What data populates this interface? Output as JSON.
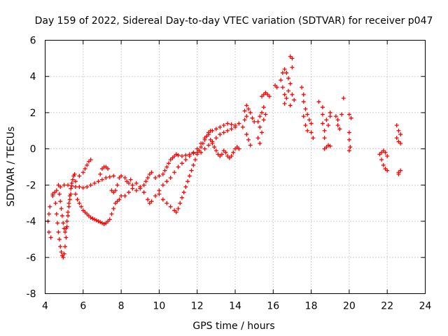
{
  "chart_data": {
    "type": "scatter",
    "title": "Day 159 of 2022, Sidereal Day-to-day VTEC variation (SDTVAR) for receiver p047",
    "xlabel": "GPS time / hours",
    "ylabel": "SDTVAR / TECUs",
    "xlim": [
      4,
      24
    ],
    "ylim": [
      -8,
      6
    ],
    "xticks": [
      4,
      6,
      8,
      10,
      12,
      14,
      16,
      18,
      20,
      22,
      24
    ],
    "yticks": [
      -8,
      -6,
      -4,
      -2,
      0,
      2,
      4,
      6
    ],
    "grid": true,
    "marker": "+",
    "colors": {
      "series": "#ff0000",
      "grid": "#a0a0a0",
      "axis": "#000000"
    },
    "series": [
      {
        "name": "SDTVAR",
        "points": [
          [
            4.15,
            -4.0
          ],
          [
            4.2,
            -3.6
          ],
          [
            4.2,
            -4.6
          ],
          [
            4.25,
            -3.2
          ],
          [
            4.3,
            -4.9
          ],
          [
            4.4,
            -2.6
          ],
          [
            4.5,
            -2.4
          ],
          [
            4.55,
            -3.0
          ],
          [
            4.6,
            -3.6
          ],
          [
            4.65,
            -4.1
          ],
          [
            4.7,
            -4.6
          ],
          [
            4.75,
            -5.0
          ],
          [
            4.8,
            -5.4
          ],
          [
            4.85,
            -5.7
          ],
          [
            4.9,
            -5.9
          ],
          [
            4.95,
            -6.0
          ],
          [
            5.0,
            -5.8
          ],
          [
            5.05,
            -5.4
          ],
          [
            5.1,
            -4.9
          ],
          [
            5.15,
            -4.3
          ],
          [
            5.2,
            -3.7
          ],
          [
            5.25,
            -3.2
          ],
          [
            5.3,
            -2.8
          ],
          [
            5.35,
            -2.5
          ],
          [
            4.7,
            -2.0
          ],
          [
            4.75,
            -2.5
          ],
          [
            4.8,
            -2.9
          ],
          [
            4.85,
            -3.3
          ],
          [
            4.9,
            -3.7
          ],
          [
            4.95,
            -4.1
          ],
          [
            5.0,
            -4.4
          ],
          [
            5.05,
            -4.6
          ],
          [
            5.1,
            -4.4
          ],
          [
            5.15,
            -4.0
          ],
          [
            5.2,
            -3.5
          ],
          [
            5.25,
            -3.0
          ],
          [
            5.3,
            -2.6
          ],
          [
            5.35,
            -2.2
          ],
          [
            5.4,
            -1.9
          ],
          [
            5.45,
            -1.7
          ],
          [
            5.5,
            -1.5
          ],
          [
            5.55,
            -1.4
          ],
          [
            5.6,
            -2.5
          ],
          [
            5.7,
            -2.8
          ],
          [
            5.8,
            -3.0
          ],
          [
            5.9,
            -3.2
          ],
          [
            6.0,
            -3.4
          ],
          [
            6.1,
            -3.5
          ],
          [
            6.2,
            -3.6
          ],
          [
            6.3,
            -3.7
          ],
          [
            6.4,
            -3.8
          ],
          [
            6.5,
            -3.85
          ],
          [
            6.6,
            -3.9
          ],
          [
            6.7,
            -3.95
          ],
          [
            6.8,
            -4.0
          ],
          [
            6.9,
            -4.05
          ],
          [
            7.0,
            -4.1
          ],
          [
            7.1,
            -4.15
          ],
          [
            7.2,
            -4.1
          ],
          [
            7.3,
            -4.0
          ],
          [
            7.4,
            -3.9
          ],
          [
            7.5,
            -3.6
          ],
          [
            7.6,
            -3.3
          ],
          [
            7.7,
            -3.0
          ],
          [
            7.8,
            -2.9
          ],
          [
            7.9,
            -2.8
          ],
          [
            8.0,
            -2.6
          ],
          [
            4.4,
            -2.5
          ],
          [
            4.6,
            -2.3
          ],
          [
            4.8,
            -2.1
          ],
          [
            5.0,
            -2.0
          ],
          [
            5.2,
            -2.0
          ],
          [
            5.4,
            -2.05
          ],
          [
            5.6,
            -2.1
          ],
          [
            5.8,
            -2.1
          ],
          [
            6.0,
            -2.15
          ],
          [
            6.2,
            -2.1
          ],
          [
            6.4,
            -2.0
          ],
          [
            6.6,
            -1.9
          ],
          [
            6.8,
            -1.8
          ],
          [
            7.0,
            -1.7
          ],
          [
            7.2,
            -1.6
          ],
          [
            7.4,
            -1.55
          ],
          [
            7.6,
            -1.5
          ],
          [
            5.6,
            -1.8
          ],
          [
            5.8,
            -1.5
          ],
          [
            6.0,
            -1.3
          ],
          [
            6.1,
            -1.1
          ],
          [
            6.2,
            -0.9
          ],
          [
            6.3,
            -0.7
          ],
          [
            6.4,
            -0.6
          ],
          [
            6.9,
            -1.4
          ],
          [
            7.0,
            -1.1
          ],
          [
            7.1,
            -1.0
          ],
          [
            7.2,
            -1.0
          ],
          [
            7.3,
            -1.1
          ],
          [
            7.5,
            -2.3
          ],
          [
            7.6,
            -2.4
          ],
          [
            7.7,
            -2.3
          ],
          [
            7.8,
            -2.0
          ],
          [
            7.9,
            -1.6
          ],
          [
            8.0,
            -1.5
          ],
          [
            8.2,
            -1.6
          ],
          [
            8.3,
            -1.8
          ],
          [
            8.4,
            -1.9
          ],
          [
            8.5,
            -1.7
          ],
          [
            8.6,
            -2.2
          ],
          [
            8.8,
            -2.3
          ],
          [
            9.0,
            -2.2
          ],
          [
            9.2,
            -2.0
          ],
          [
            9.3,
            -1.8
          ],
          [
            9.4,
            -1.6
          ],
          [
            9.5,
            -1.4
          ],
          [
            9.6,
            -1.3
          ],
          [
            8.2,
            -2.6
          ],
          [
            8.4,
            -2.4
          ],
          [
            8.6,
            -2.0
          ],
          [
            8.8,
            -1.9
          ],
          [
            9.0,
            -2.1
          ],
          [
            9.2,
            -2.4
          ],
          [
            9.4,
            -2.8
          ],
          [
            9.5,
            -3.0
          ],
          [
            9.6,
            -2.9
          ],
          [
            9.8,
            -2.6
          ],
          [
            10.0,
            -2.3
          ],
          [
            10.0,
            -2.5
          ],
          [
            10.2,
            -2.8
          ],
          [
            10.4,
            -3.0
          ],
          [
            10.6,
            -3.2
          ],
          [
            10.8,
            -3.4
          ],
          [
            10.9,
            -3.5
          ],
          [
            11.0,
            -3.3
          ],
          [
            11.1,
            -3.0
          ],
          [
            11.2,
            -2.7
          ],
          [
            11.3,
            -2.4
          ],
          [
            11.4,
            -2.1
          ],
          [
            11.5,
            -1.8
          ],
          [
            11.6,
            -1.5
          ],
          [
            11.7,
            -1.2
          ],
          [
            11.8,
            -0.9
          ],
          [
            11.9,
            -0.6
          ],
          [
            12.0,
            -0.3
          ],
          [
            12.1,
            -0.1
          ],
          [
            12.2,
            0.1
          ],
          [
            12.3,
            0.3
          ],
          [
            12.4,
            0.5
          ],
          [
            12.5,
            0.7
          ],
          [
            12.6,
            0.9
          ],
          [
            12.7,
            1.0
          ],
          [
            9.8,
            -1.6
          ],
          [
            10.0,
            -1.5
          ],
          [
            10.2,
            -1.4
          ],
          [
            10.3,
            -1.2
          ],
          [
            10.4,
            -1.0
          ],
          [
            10.5,
            -0.8
          ],
          [
            10.6,
            -0.6
          ],
          [
            10.7,
            -0.5
          ],
          [
            10.8,
            -0.4
          ],
          [
            10.9,
            -0.3
          ],
          [
            11.0,
            -0.35
          ],
          [
            11.2,
            -0.4
          ],
          [
            11.4,
            -0.35
          ],
          [
            11.6,
            -0.3
          ],
          [
            11.8,
            -0.25
          ],
          [
            12.0,
            -0.2
          ],
          [
            10.2,
            -2.0
          ],
          [
            10.4,
            -1.8
          ],
          [
            10.6,
            -1.6
          ],
          [
            10.8,
            -1.3
          ],
          [
            11.0,
            -1.0
          ],
          [
            11.2,
            -0.8
          ],
          [
            11.4,
            -0.6
          ],
          [
            11.6,
            -0.4
          ],
          [
            11.8,
            -0.2
          ],
          [
            12.0,
            0.0
          ],
          [
            12.2,
            0.3
          ],
          [
            12.4,
            0.6
          ],
          [
            12.6,
            0.8
          ],
          [
            12.8,
            1.0
          ],
          [
            13.0,
            1.1
          ],
          [
            13.2,
            1.2
          ],
          [
            13.4,
            1.3
          ],
          [
            13.6,
            1.4
          ],
          [
            13.8,
            1.35
          ],
          [
            14.0,
            1.3
          ],
          [
            14.2,
            1.4
          ],
          [
            12.2,
            -0.2
          ],
          [
            12.4,
            0.0
          ],
          [
            12.6,
            0.2
          ],
          [
            12.8,
            0.4
          ],
          [
            13.0,
            0.6
          ],
          [
            13.2,
            0.8
          ],
          [
            13.4,
            0.9
          ],
          [
            13.6,
            1.0
          ],
          [
            13.8,
            1.1
          ],
          [
            14.0,
            1.2
          ],
          [
            12.7,
            0.5
          ],
          [
            12.8,
            0.3
          ],
          [
            12.9,
            0.1
          ],
          [
            13.0,
            -0.1
          ],
          [
            13.1,
            -0.3
          ],
          [
            13.2,
            -0.4
          ],
          [
            13.3,
            -0.3
          ],
          [
            13.4,
            -0.1
          ],
          [
            13.5,
            -0.2
          ],
          [
            13.6,
            -0.4
          ],
          [
            13.7,
            -0.5
          ],
          [
            13.8,
            -0.4
          ],
          [
            13.9,
            -0.2
          ],
          [
            14.0,
            0.0
          ],
          [
            14.1,
            0.1
          ],
          [
            14.2,
            0.0
          ],
          [
            14.4,
            1.2
          ],
          [
            14.5,
            1.6
          ],
          [
            14.5,
            2.1
          ],
          [
            14.6,
            2.4
          ],
          [
            14.6,
            1.8
          ],
          [
            14.7,
            2.2
          ],
          [
            14.8,
            2.0
          ],
          [
            14.9,
            1.7
          ],
          [
            15.0,
            1.5
          ],
          [
            14.6,
            0.8
          ],
          [
            14.7,
            0.5
          ],
          [
            14.8,
            0.2
          ],
          [
            15.2,
            1.5
          ],
          [
            15.3,
            1.8
          ],
          [
            15.4,
            2.0
          ],
          [
            15.5,
            2.3
          ],
          [
            15.3,
            1.2
          ],
          [
            15.4,
            0.9
          ],
          [
            15.5,
            1.6
          ],
          [
            15.6,
            1.9
          ],
          [
            15.2,
            0.6
          ],
          [
            15.3,
            0.3
          ],
          [
            15.4,
            2.9
          ],
          [
            15.5,
            3.0
          ],
          [
            15.6,
            3.1
          ],
          [
            15.7,
            3.0
          ],
          [
            15.8,
            2.9
          ],
          [
            16.1,
            3.5
          ],
          [
            16.2,
            3.4
          ],
          [
            16.4,
            3.8
          ],
          [
            16.5,
            4.2
          ],
          [
            16.6,
            4.4
          ],
          [
            16.7,
            4.2
          ],
          [
            16.8,
            3.9
          ],
          [
            16.5,
            3.4
          ],
          [
            16.6,
            3.0
          ],
          [
            16.7,
            2.8
          ],
          [
            16.8,
            3.2
          ],
          [
            16.9,
            3.6
          ],
          [
            17.0,
            3.0
          ],
          [
            17.1,
            2.7
          ],
          [
            16.6,
            2.5
          ],
          [
            16.9,
            2.4
          ],
          [
            16.9,
            5.1
          ],
          [
            17.0,
            5.0
          ],
          [
            17.0,
            4.5
          ],
          [
            17.5,
            3.4
          ],
          [
            17.6,
            3.0
          ],
          [
            17.6,
            2.6
          ],
          [
            17.7,
            2.2
          ],
          [
            17.8,
            1.9
          ],
          [
            17.9,
            1.6
          ],
          [
            17.7,
            1.3
          ],
          [
            17.8,
            1.0
          ],
          [
            18.0,
            1.4
          ],
          [
            18.0,
            0.9
          ],
          [
            18.1,
            0.6
          ],
          [
            17.6,
            1.8
          ],
          [
            18.4,
            2.6
          ],
          [
            18.6,
            2.3
          ],
          [
            18.6,
            1.9
          ],
          [
            18.6,
            1.4
          ],
          [
            18.7,
            1.0
          ],
          [
            18.7,
            0.6
          ],
          [
            18.8,
            1.6
          ],
          [
            18.9,
            1.3
          ],
          [
            19.0,
            1.8
          ],
          [
            19.0,
            2.0
          ],
          [
            18.7,
            0.0
          ],
          [
            18.8,
            0.1
          ],
          [
            18.9,
            0.2
          ],
          [
            19.0,
            0.15
          ],
          [
            19.3,
            1.8
          ],
          [
            19.4,
            1.6
          ],
          [
            19.4,
            1.3
          ],
          [
            19.5,
            1.1
          ],
          [
            19.6,
            1.9
          ],
          [
            19.7,
            2.8
          ],
          [
            20.0,
            1.9
          ],
          [
            20.1,
            1.7
          ],
          [
            20.0,
            0.9
          ],
          [
            20.0,
            0.5
          ],
          [
            20.05,
            0.1
          ],
          [
            20.0,
            -0.1
          ],
          [
            21.6,
            -0.3
          ],
          [
            21.7,
            -0.6
          ],
          [
            21.8,
            -0.9
          ],
          [
            21.9,
            -1.1
          ],
          [
            22.0,
            -1.2
          ],
          [
            21.7,
            -0.2
          ],
          [
            21.8,
            -0.1
          ],
          [
            21.9,
            -0.2
          ],
          [
            22.0,
            -0.4
          ],
          [
            22.5,
            1.3
          ],
          [
            22.6,
            1.0
          ],
          [
            22.7,
            0.8
          ],
          [
            22.6,
            0.4
          ],
          [
            22.7,
            0.3
          ],
          [
            22.5,
            0.6
          ],
          [
            22.6,
            -1.3
          ],
          [
            22.7,
            -1.2
          ],
          [
            22.6,
            -1.4
          ]
        ]
      }
    ]
  }
}
